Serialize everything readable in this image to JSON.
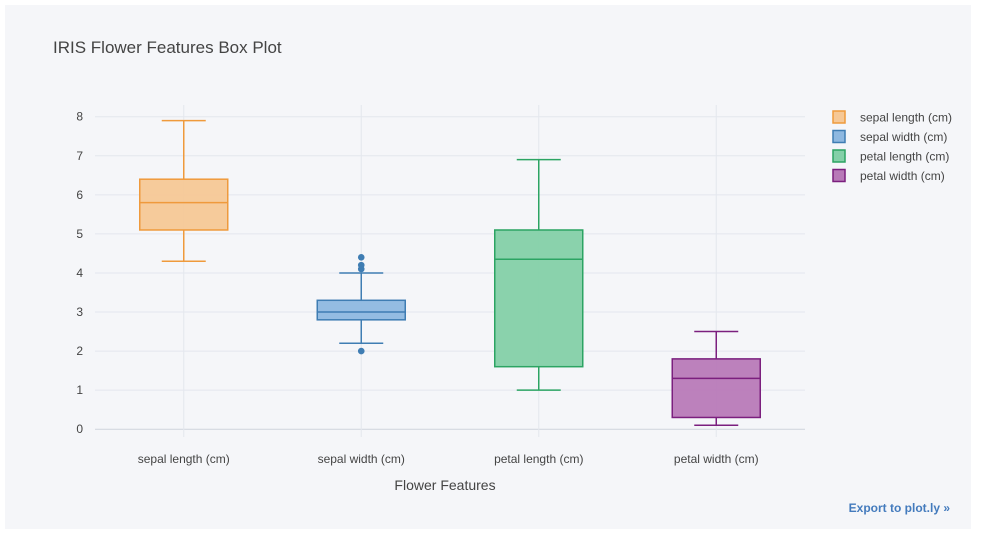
{
  "chart_data": {
    "type": "box",
    "title": "IRIS Flower Features Box Plot",
    "xlabel": "Flower Features",
    "ylabel": "",
    "ylim": [
      -0.2,
      8.3
    ],
    "yticks": [
      0,
      1,
      2,
      3,
      4,
      5,
      6,
      7,
      8
    ],
    "categories": [
      "sepal length (cm)",
      "sepal width (cm)",
      "petal length (cm)",
      "petal width (cm)"
    ],
    "grid": true,
    "legend_position": "top-right",
    "series": [
      {
        "name": "sepal length (cm)",
        "color": "#ef9a3c",
        "fill": "#f6c896",
        "min": 4.3,
        "q1": 5.1,
        "median": 5.8,
        "q3": 6.4,
        "max": 7.9,
        "outliers": []
      },
      {
        "name": "sepal width (cm)",
        "color": "#3f7db3",
        "fill": "#8eb8e0",
        "min": 2.2,
        "q1": 2.8,
        "median": 3.0,
        "q3": 3.3,
        "max": 4.0,
        "outliers": [
          4.1,
          4.2,
          4.4,
          2.0
        ]
      },
      {
        "name": "petal length (cm)",
        "color": "#2ca463",
        "fill": "#84d0a8",
        "min": 1.0,
        "q1": 1.6,
        "median": 4.35,
        "q3": 5.1,
        "max": 6.9,
        "outliers": []
      },
      {
        "name": "petal width (cm)",
        "color": "#7b1f7e",
        "fill": "#b87ab8",
        "min": 0.1,
        "q1": 0.3,
        "median": 1.3,
        "q3": 1.8,
        "max": 2.5,
        "outliers": []
      }
    ]
  },
  "export_label": "Export to plot.ly »"
}
